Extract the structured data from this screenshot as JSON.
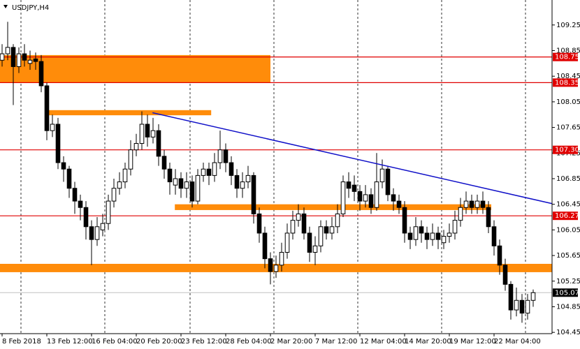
{
  "chart_data": {
    "type": "candlestick",
    "title": "USDJPY,H4",
    "xlim": [
      -0.375,
      98.375
    ],
    "ylim": [
      104.43,
      109.64
    ],
    "yticks": [
      109.25,
      108.85,
      108.45,
      108.05,
      107.65,
      107.25,
      106.85,
      106.45,
      106.05,
      105.65,
      105.25,
      104.85,
      104.45
    ],
    "xticks": [
      {
        "value": 0,
        "label": "8 Feb 2018"
      },
      {
        "value": 8,
        "label": "13 Feb 12:00"
      },
      {
        "value": 16,
        "label": "16 Feb 04:00"
      },
      {
        "value": 24,
        "label": "20 Feb 20:00"
      },
      {
        "value": 32,
        "label": "23 Feb 12:00"
      },
      {
        "value": 40,
        "label": "28 Feb 04:00"
      },
      {
        "value": 48,
        "label": "2 Mar 20:00"
      },
      {
        "value": 56,
        "label": "7 Mar 12:00"
      },
      {
        "value": 64,
        "label": "12 Mar 04:00"
      },
      {
        "value": 72,
        "label": "14 Mar 20:00"
      },
      {
        "value": 80,
        "label": "19 Mar 12:00"
      },
      {
        "value": 88,
        "label": "22 Mar 04:00"
      }
    ],
    "grid_x": [
      3.375,
      18.375,
      33.625,
      48.625,
      63.625,
      78.625,
      93.625
    ],
    "candles": [
      [
        108.7,
        108.95,
        108.6,
        108.8
      ],
      [
        108.8,
        109.3,
        108.7,
        108.9
      ],
      [
        108.9,
        108.95,
        108.0,
        108.6
      ],
      [
        108.6,
        108.9,
        108.5,
        108.8
      ],
      [
        108.8,
        108.95,
        108.6,
        108.7
      ],
      [
        108.65,
        108.85,
        108.55,
        108.7
      ],
      [
        108.72,
        108.82,
        108.55,
        108.68
      ],
      [
        108.68,
        108.78,
        108.2,
        108.3
      ],
      [
        108.3,
        108.35,
        107.45,
        107.6
      ],
      [
        107.6,
        107.85,
        107.5,
        107.7
      ],
      [
        107.7,
        107.8,
        107.0,
        107.1
      ],
      [
        107.1,
        107.2,
        106.8,
        107.0
      ],
      [
        107.0,
        107.05,
        106.55,
        106.7
      ],
      [
        106.7,
        106.8,
        106.3,
        106.5
      ],
      [
        106.5,
        106.6,
        106.2,
        106.4
      ],
      [
        106.4,
        106.5,
        105.9,
        106.1
      ],
      [
        106.1,
        106.2,
        105.5,
        105.9
      ],
      [
        105.9,
        106.25,
        105.8,
        106.1
      ],
      [
        106.05,
        106.3,
        105.95,
        106.15
      ],
      [
        106.15,
        106.6,
        106.05,
        106.5
      ],
      [
        106.5,
        106.85,
        106.4,
        106.7
      ],
      [
        106.7,
        106.95,
        106.6,
        106.8
      ],
      [
        106.8,
        107.1,
        106.7,
        107.0
      ],
      [
        107.0,
        107.45,
        106.9,
        107.3
      ],
      [
        107.3,
        107.55,
        107.2,
        107.4
      ],
      [
        107.4,
        107.9,
        107.3,
        107.7
      ],
      [
        107.7,
        107.85,
        107.35,
        107.5
      ],
      [
        107.5,
        107.8,
        107.4,
        107.6
      ],
      [
        107.6,
        107.7,
        107.05,
        107.2
      ],
      [
        107.2,
        107.3,
        106.85,
        107.0
      ],
      [
        107.0,
        107.1,
        106.6,
        106.8
      ],
      [
        106.75,
        107.0,
        106.6,
        106.85
      ],
      [
        106.85,
        106.95,
        106.55,
        106.7
      ],
      [
        106.7,
        106.95,
        106.55,
        106.8
      ],
      [
        106.8,
        106.9,
        106.4,
        106.5
      ],
      [
        106.5,
        107.0,
        106.45,
        106.9
      ],
      [
        106.9,
        107.1,
        106.8,
        107.0
      ],
      [
        107.0,
        107.1,
        106.75,
        106.9
      ],
      [
        106.9,
        107.25,
        106.8,
        107.1
      ],
      [
        107.1,
        107.6,
        107.0,
        107.3
      ],
      [
        107.3,
        107.4,
        106.95,
        107.1
      ],
      [
        107.1,
        107.2,
        106.75,
        106.9
      ],
      [
        106.9,
        107.0,
        106.55,
        106.7
      ],
      [
        106.7,
        106.95,
        106.55,
        106.8
      ],
      [
        106.8,
        107.05,
        106.7,
        106.9
      ],
      [
        106.9,
        106.95,
        106.15,
        106.3
      ],
      [
        106.3,
        106.4,
        105.85,
        106.0
      ],
      [
        106.0,
        106.1,
        105.45,
        105.6
      ],
      [
        105.6,
        105.7,
        105.2,
        105.4
      ],
      [
        105.4,
        105.65,
        105.3,
        105.5
      ],
      [
        105.5,
        105.85,
        105.4,
        105.7
      ],
      [
        105.7,
        106.15,
        105.6,
        106.0
      ],
      [
        106.0,
        106.35,
        105.9,
        106.2
      ],
      [
        106.2,
        106.45,
        106.1,
        106.3
      ],
      [
        106.3,
        106.4,
        105.9,
        106.0
      ],
      [
        106.0,
        106.1,
        105.55,
        105.7
      ],
      [
        105.7,
        105.95,
        105.5,
        105.8
      ],
      [
        105.8,
        106.2,
        105.7,
        106.1
      ],
      [
        106.1,
        106.2,
        105.9,
        106.0
      ],
      [
        106.0,
        106.25,
        105.9,
        106.1
      ],
      [
        106.1,
        106.45,
        106.0,
        106.3
      ],
      [
        106.3,
        106.9,
        106.25,
        106.8
      ],
      [
        106.8,
        106.95,
        106.55,
        106.7
      ],
      [
        106.75,
        106.9,
        106.5,
        106.65
      ],
      [
        106.65,
        106.75,
        106.35,
        106.5
      ],
      [
        106.5,
        106.75,
        106.4,
        106.6
      ],
      [
        106.6,
        106.7,
        106.3,
        106.4
      ],
      [
        106.4,
        107.25,
        106.35,
        106.8
      ],
      [
        106.8,
        107.15,
        106.7,
        107.0
      ],
      [
        107.0,
        107.05,
        106.5,
        106.6
      ],
      [
        106.6,
        106.7,
        106.35,
        106.5
      ],
      [
        106.5,
        106.6,
        106.3,
        106.4
      ],
      [
        106.4,
        106.5,
        105.85,
        106.0
      ],
      [
        106.0,
        106.1,
        105.75,
        105.9
      ],
      [
        105.9,
        106.25,
        105.8,
        106.1
      ],
      [
        106.1,
        106.2,
        105.85,
        106.0
      ],
      [
        106.0,
        106.1,
        105.75,
        105.9
      ],
      [
        105.9,
        106.15,
        105.8,
        106.0
      ],
      [
        106.0,
        106.1,
        105.75,
        105.9
      ],
      [
        105.85,
        106.05,
        105.75,
        105.95
      ],
      [
        105.95,
        106.15,
        105.85,
        106.0
      ],
      [
        106.0,
        106.35,
        105.9,
        106.2
      ],
      [
        106.2,
        106.55,
        106.1,
        106.4
      ],
      [
        106.4,
        106.65,
        106.3,
        106.5
      ],
      [
        106.5,
        106.6,
        106.3,
        106.4
      ],
      [
        106.4,
        106.6,
        106.3,
        106.5
      ],
      [
        106.5,
        106.65,
        106.3,
        106.4
      ],
      [
        106.4,
        106.5,
        106.0,
        106.1
      ],
      [
        106.1,
        106.2,
        105.65,
        105.8
      ],
      [
        105.8,
        105.9,
        105.35,
        105.5
      ],
      [
        105.5,
        105.6,
        105.1,
        105.2
      ],
      [
        105.2,
        105.25,
        104.65,
        104.8
      ],
      [
        104.8,
        105.15,
        104.7,
        104.95
      ],
      [
        104.95,
        105.05,
        104.6,
        104.75
      ],
      [
        104.75,
        105.05,
        104.65,
        104.95
      ],
      [
        104.95,
        105.12,
        104.85,
        105.07
      ]
    ],
    "zones": [
      {
        "from": -0.375,
        "to": 48,
        "top": 108.78,
        "bottom": 108.35
      },
      {
        "from": 7.75,
        "to": 37.4,
        "top": 107.92,
        "bottom": 107.84
      },
      {
        "from": 30.9,
        "to": 87.5,
        "top": 106.45,
        "bottom": 106.36
      },
      {
        "from": -0.375,
        "to": 98.375,
        "top": 105.52,
        "bottom": 105.39
      }
    ],
    "levels": [
      108.75,
      108.35,
      {
        "value": 107.3,
        "label": "107.30"
      },
      106.27
    ],
    "trendline": {
      "x": [
        26.9,
        98.4
      ],
      "y": [
        107.88,
        106.46
      ]
    },
    "last_price": 105.07,
    "colors": {
      "zone": "#ff8c0a",
      "level": "#e00000",
      "trend": "#1010c8",
      "candle": "#000000",
      "last": "#c0c0c0"
    }
  }
}
